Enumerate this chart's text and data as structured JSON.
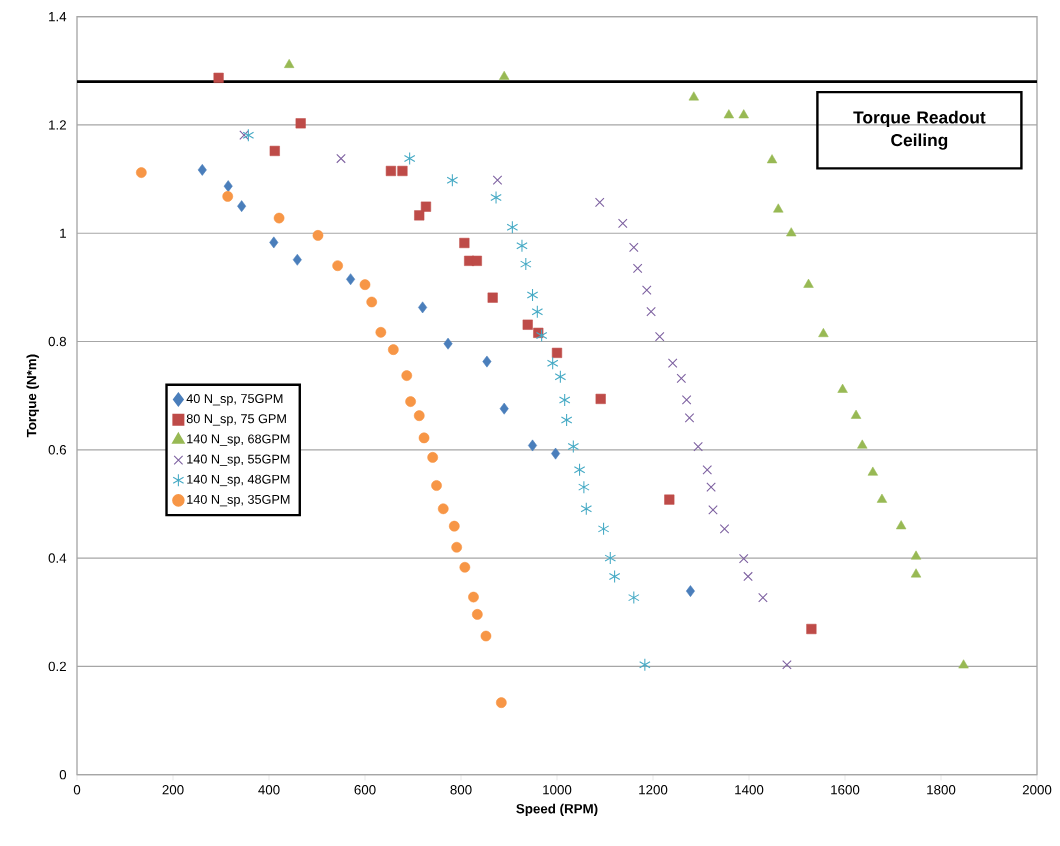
{
  "chart_data": {
    "type": "scatter",
    "xlabel": "Speed (RPM)",
    "ylabel": "Torque (N*m)",
    "xlim": [
      0,
      2000
    ],
    "ylim": [
      0,
      1.4
    ],
    "xticks": [
      0,
      200,
      400,
      600,
      800,
      1000,
      1200,
      1400,
      1600,
      1800,
      2000
    ],
    "yticks": [
      0,
      0.2,
      0.4,
      0.6,
      0.8,
      1,
      1.2,
      1.4
    ],
    "grid": "y",
    "legend": "left",
    "ref_lines": [
      {
        "axis": "y",
        "value": 1.28,
        "label": "Torque Readout Ceiling",
        "color": "#000000"
      }
    ],
    "series": [
      {
        "name": "40 N_sp, 75GPM",
        "color": "#4a7ebb",
        "marker": "diamond",
        "x": [
          261,
          315,
          343,
          410,
          459,
          570,
          720,
          773,
          854,
          890,
          949,
          997,
          1278
        ],
        "values": [
          1.117,
          1.087,
          1.05,
          0.983,
          0.951,
          0.915,
          0.863,
          0.796,
          0.763,
          0.676,
          0.608,
          0.593,
          0.339
        ]
      },
      {
        "name": "80 N_sp, 75 GPM",
        "color": "#be4b48",
        "marker": "square",
        "x": [
          295,
          466,
          412,
          654,
          678,
          727,
          713,
          807,
          817,
          833,
          866,
          939,
          961,
          1000,
          1091,
          1234,
          1530
        ],
        "values": [
          1.287,
          1.203,
          1.152,
          1.115,
          1.115,
          1.049,
          1.033,
          0.982,
          0.949,
          0.949,
          0.881,
          0.831,
          0.816,
          0.779,
          0.694,
          0.508,
          0.269
        ]
      },
      {
        "name": "140 N_sp, 68GPM",
        "color": "#98b954",
        "marker": "triangle",
        "x": [
          442,
          890,
          1285,
          1358,
          1389,
          1448,
          1461,
          1488,
          1524,
          1555,
          1595,
          1623,
          1636,
          1658,
          1677,
          1717,
          1748,
          1748,
          1847
        ],
        "values": [
          1.311,
          1.289,
          1.251,
          1.218,
          1.218,
          1.135,
          1.044,
          1.0,
          0.905,
          0.814,
          0.711,
          0.663,
          0.608,
          0.558,
          0.508,
          0.459,
          0.403,
          0.37,
          0.202
        ]
      },
      {
        "name": "140 N_sp, 55GPM",
        "color": "#7d60a0",
        "marker": "cross",
        "x": [
          348,
          550,
          876,
          1089,
          1137,
          1160,
          1168,
          1187,
          1196,
          1214,
          1241,
          1259,
          1270,
          1276,
          1294,
          1313,
          1321,
          1325,
          1349,
          1389,
          1398,
          1429,
          1479
        ],
        "values": [
          1.181,
          1.138,
          1.098,
          1.057,
          1.018,
          0.974,
          0.935,
          0.895,
          0.855,
          0.809,
          0.76,
          0.732,
          0.692,
          0.659,
          0.606,
          0.563,
          0.531,
          0.489,
          0.454,
          0.399,
          0.366,
          0.327,
          0.203
        ]
      },
      {
        "name": "140 N_sp, 48GPM",
        "color": "#46aac5",
        "x": [
          357,
          693,
          782,
          873,
          907,
          927,
          935,
          949,
          959,
          968,
          991,
          1007,
          1016,
          1020,
          1034,
          1047,
          1056,
          1061,
          1097,
          1111,
          1120,
          1160,
          1183
        ],
        "values": [
          1.181,
          1.138,
          1.098,
          1.066,
          1.011,
          0.977,
          0.943,
          0.886,
          0.855,
          0.811,
          0.76,
          0.735,
          0.692,
          0.655,
          0.606,
          0.563,
          0.531,
          0.491,
          0.454,
          0.4,
          0.366,
          0.327,
          0.203
        ]
      },
      {
        "name": "140 N_sp, 35GPM",
        "color": "#f79646",
        "marker": "circle",
        "x": [
          134,
          314,
          421,
          502,
          543,
          600,
          614,
          633,
          659,
          687,
          695,
          713,
          723,
          741,
          749,
          763,
          786,
          791,
          808,
          826,
          834,
          852,
          884
        ],
        "values": [
          1.112,
          1.068,
          1.028,
          0.996,
          0.94,
          0.905,
          0.873,
          0.817,
          0.785,
          0.737,
          0.689,
          0.663,
          0.622,
          0.586,
          0.534,
          0.491,
          0.459,
          0.42,
          0.383,
          0.328,
          0.296,
          0.256,
          0.133
        ]
      }
    ]
  }
}
